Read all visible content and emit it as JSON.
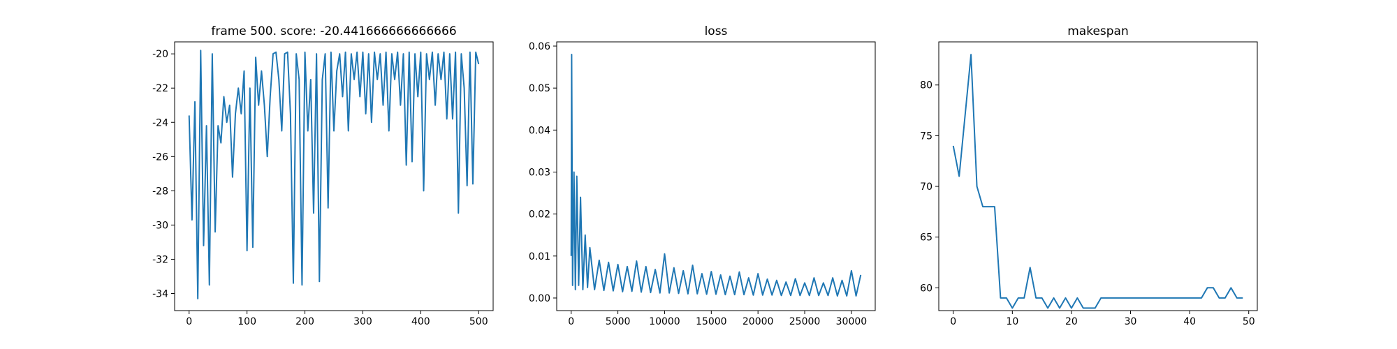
{
  "chart_data": [
    {
      "type": "line",
      "title": "frame 500. score: -20.441666666666666",
      "x": [
        0,
        5,
        10,
        15,
        20,
        25,
        30,
        35,
        40,
        45,
        50,
        55,
        60,
        65,
        70,
        75,
        80,
        85,
        90,
        95,
        100,
        105,
        110,
        115,
        120,
        125,
        130,
        135,
        140,
        145,
        150,
        155,
        160,
        165,
        170,
        175,
        180,
        185,
        190,
        195,
        200,
        205,
        210,
        215,
        220,
        225,
        230,
        235,
        240,
        245,
        250,
        255,
        260,
        265,
        270,
        275,
        280,
        285,
        290,
        295,
        300,
        305,
        310,
        315,
        320,
        325,
        330,
        335,
        340,
        345,
        350,
        355,
        360,
        365,
        370,
        375,
        380,
        385,
        390,
        395,
        400,
        405,
        410,
        415,
        420,
        425,
        430,
        435,
        440,
        445,
        450,
        455,
        460,
        465,
        470,
        475,
        480,
        485,
        490,
        495,
        500
      ],
      "series": [
        {
          "color": "#1f77b4",
          "values": [
            -23.6,
            -29.7,
            -22.8,
            -34.3,
            -19.8,
            -31.2,
            -24.2,
            -33.5,
            -20,
            -30.4,
            -24.2,
            -25.2,
            -22.5,
            -24,
            -23,
            -27.2,
            -23.5,
            -22,
            -23.5,
            -21,
            -31.5,
            -22,
            -31.3,
            -20.2,
            -23,
            -21,
            -23,
            -26,
            -22.5,
            -20,
            -19.9,
            -21.5,
            -24.5,
            -20,
            -19.9,
            -23.5,
            -33.4,
            -20,
            -21.5,
            -33.5,
            -19.9,
            -24.5,
            -21.5,
            -29.3,
            -20,
            -33.3,
            -21.5,
            -20,
            -29,
            -19.9,
            -24.5,
            -21,
            -20,
            -22.5,
            -19.9,
            -24.5,
            -20,
            -21.5,
            -19.9,
            -22.5,
            -19.9,
            -23.5,
            -20,
            -24,
            -19.9,
            -21.5,
            -20,
            -23,
            -19.9,
            -24.5,
            -20,
            -21.5,
            -19.9,
            -23,
            -20,
            -26.5,
            -19.9,
            -26.3,
            -20,
            -22.5,
            -19.9,
            -28,
            -20,
            -21.5,
            -19.9,
            -23,
            -20,
            -21.5,
            -19.9,
            -23.8,
            -20,
            -23.8,
            -19.9,
            -29.3,
            -20,
            -22,
            -27.7,
            -19.9,
            -27.6,
            -19.9,
            -20.6
          ]
        }
      ],
      "xlim": [
        -25,
        525
      ],
      "ylim": [
        -35,
        -19.3
      ],
      "xticks": [
        0,
        100,
        200,
        300,
        400,
        500
      ],
      "yticks": [
        -34,
        -32,
        -30,
        -28,
        -26,
        -24,
        -22,
        -20
      ]
    },
    {
      "type": "line",
      "title": "loss",
      "x": [
        0,
        50,
        150,
        300,
        450,
        600,
        800,
        1000,
        1250,
        1500,
        1750,
        2000,
        2500,
        3000,
        3500,
        4000,
        4500,
        5000,
        5500,
        6000,
        6500,
        7000,
        7500,
        8000,
        8500,
        9000,
        9500,
        10000,
        10500,
        11000,
        11500,
        12000,
        12500,
        13000,
        13500,
        14000,
        14500,
        15000,
        15500,
        16000,
        16500,
        17000,
        17500,
        18000,
        18500,
        19000,
        19500,
        20000,
        20500,
        21000,
        21500,
        22000,
        22500,
        23000,
        23500,
        24000,
        24500,
        25000,
        25500,
        26000,
        26500,
        27000,
        27500,
        28000,
        28500,
        29000,
        29500,
        30000,
        30500,
        31000
      ],
      "series": [
        {
          "color": "#1f77b4",
          "values": [
            0.01,
            0.058,
            0.003,
            0.03,
            0.002,
            0.029,
            0.003,
            0.024,
            0.002,
            0.015,
            0.0025,
            0.012,
            0.002,
            0.009,
            0.0018,
            0.0085,
            0.0017,
            0.008,
            0.0015,
            0.0075,
            0.0016,
            0.0088,
            0.0014,
            0.0075,
            0.0013,
            0.0068,
            0.0012,
            0.0105,
            0.0012,
            0.0072,
            0.0011,
            0.0065,
            0.001,
            0.0078,
            0.001,
            0.0058,
            0.0009,
            0.0063,
            0.0009,
            0.0055,
            0.0008,
            0.0052,
            0.0008,
            0.0062,
            0.0008,
            0.0048,
            0.0007,
            0.0058,
            0.0007,
            0.0045,
            0.0007,
            0.0042,
            0.0006,
            0.0038,
            0.0006,
            0.0046,
            0.0006,
            0.0036,
            0.0006,
            0.0048,
            0.0006,
            0.0036,
            0.0006,
            0.0048,
            0.0005,
            0.0042,
            0.0005,
            0.0065,
            0.0005,
            0.0055
          ]
        }
      ],
      "xlim": [
        -1550,
        32550
      ],
      "ylim": [
        -0.003,
        0.061
      ],
      "xticks": [
        0,
        5000,
        10000,
        15000,
        20000,
        25000,
        30000
      ],
      "yticks": [
        {
          "value": 0,
          "label": "0.00"
        },
        0.01,
        0.02,
        0.03,
        0.04,
        0.05,
        0.06
      ]
    },
    {
      "type": "line",
      "title": "makespan",
      "x": [
        0,
        1,
        2,
        3,
        4,
        5,
        6,
        7,
        8,
        9,
        10,
        11,
        12,
        13,
        14,
        15,
        16,
        17,
        18,
        19,
        20,
        21,
        22,
        23,
        24,
        25,
        26,
        27,
        28,
        29,
        30,
        31,
        32,
        33,
        34,
        35,
        36,
        37,
        38,
        39,
        40,
        41,
        42,
        43,
        44,
        45,
        46,
        47,
        48,
        49
      ],
      "series": [
        {
          "color": "#1f77b4",
          "values": [
            74,
            71,
            77,
            83,
            70,
            68,
            68,
            68,
            59,
            59,
            58,
            59,
            59,
            62,
            59,
            59,
            58,
            59,
            58,
            59,
            58,
            59,
            58,
            58,
            58,
            59,
            59,
            59,
            59,
            59,
            59,
            59,
            59,
            59,
            59,
            59,
            59,
            59,
            59,
            59,
            59,
            59,
            59,
            60,
            60,
            59,
            59,
            60,
            59,
            59
          ]
        }
      ],
      "xlim": [
        -2.45,
        51.45
      ],
      "ylim": [
        57.75,
        84.25
      ],
      "xticks": [
        0,
        10,
        20,
        30,
        40,
        50
      ],
      "yticks": [
        60,
        65,
        70,
        75,
        80
      ]
    }
  ]
}
